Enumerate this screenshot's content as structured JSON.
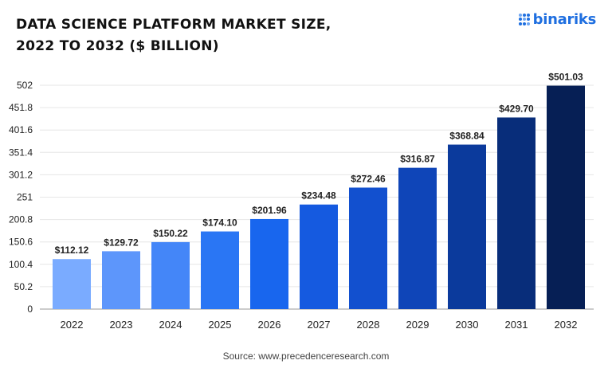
{
  "header": {
    "title_line1": "DATA SCIENCE PLATFORM MARKET SIZE,",
    "title_line2": "2022 TO 2032 ($ BILLION)"
  },
  "logo": {
    "text": "binariks",
    "icon": "dots-grid-icon",
    "color": "#1f6fe0"
  },
  "source": "Source: www.precedenceresearch.com",
  "chart_data": {
    "type": "bar",
    "categories": [
      "2022",
      "2023",
      "2024",
      "2025",
      "2026",
      "2027",
      "2028",
      "2029",
      "2030",
      "2031",
      "2032"
    ],
    "values": [
      112.12,
      129.72,
      150.22,
      174.1,
      201.96,
      234.48,
      272.46,
      316.87,
      368.84,
      429.7,
      501.03
    ],
    "value_labels": [
      "$112.12",
      "$129.72",
      "$150.22",
      "$174.10",
      "$201.96",
      "$234.48",
      "$272.46",
      "$316.87",
      "$368.84",
      "$429.70",
      "$501.03"
    ],
    "y_ticks": [
      0,
      50.2,
      100.4,
      150.6,
      200.8,
      251,
      301.2,
      351.4,
      401.6,
      451.8,
      502
    ],
    "y_tick_labels": [
      "0",
      "50.2",
      "100.4",
      "150.6",
      "200.8",
      "251",
      "301.2",
      "351.4",
      "401.6",
      "451.8",
      "502"
    ],
    "ylim": [
      0,
      502
    ],
    "grid": "horizontal",
    "bar_colors": [
      "#7aabff",
      "#5d96fb",
      "#4486f8",
      "#2a76f4",
      "#1866ee",
      "#155ae0",
      "#1250cf",
      "#0f45b8",
      "#0b3a9c",
      "#082d7a",
      "#061f55"
    ]
  }
}
